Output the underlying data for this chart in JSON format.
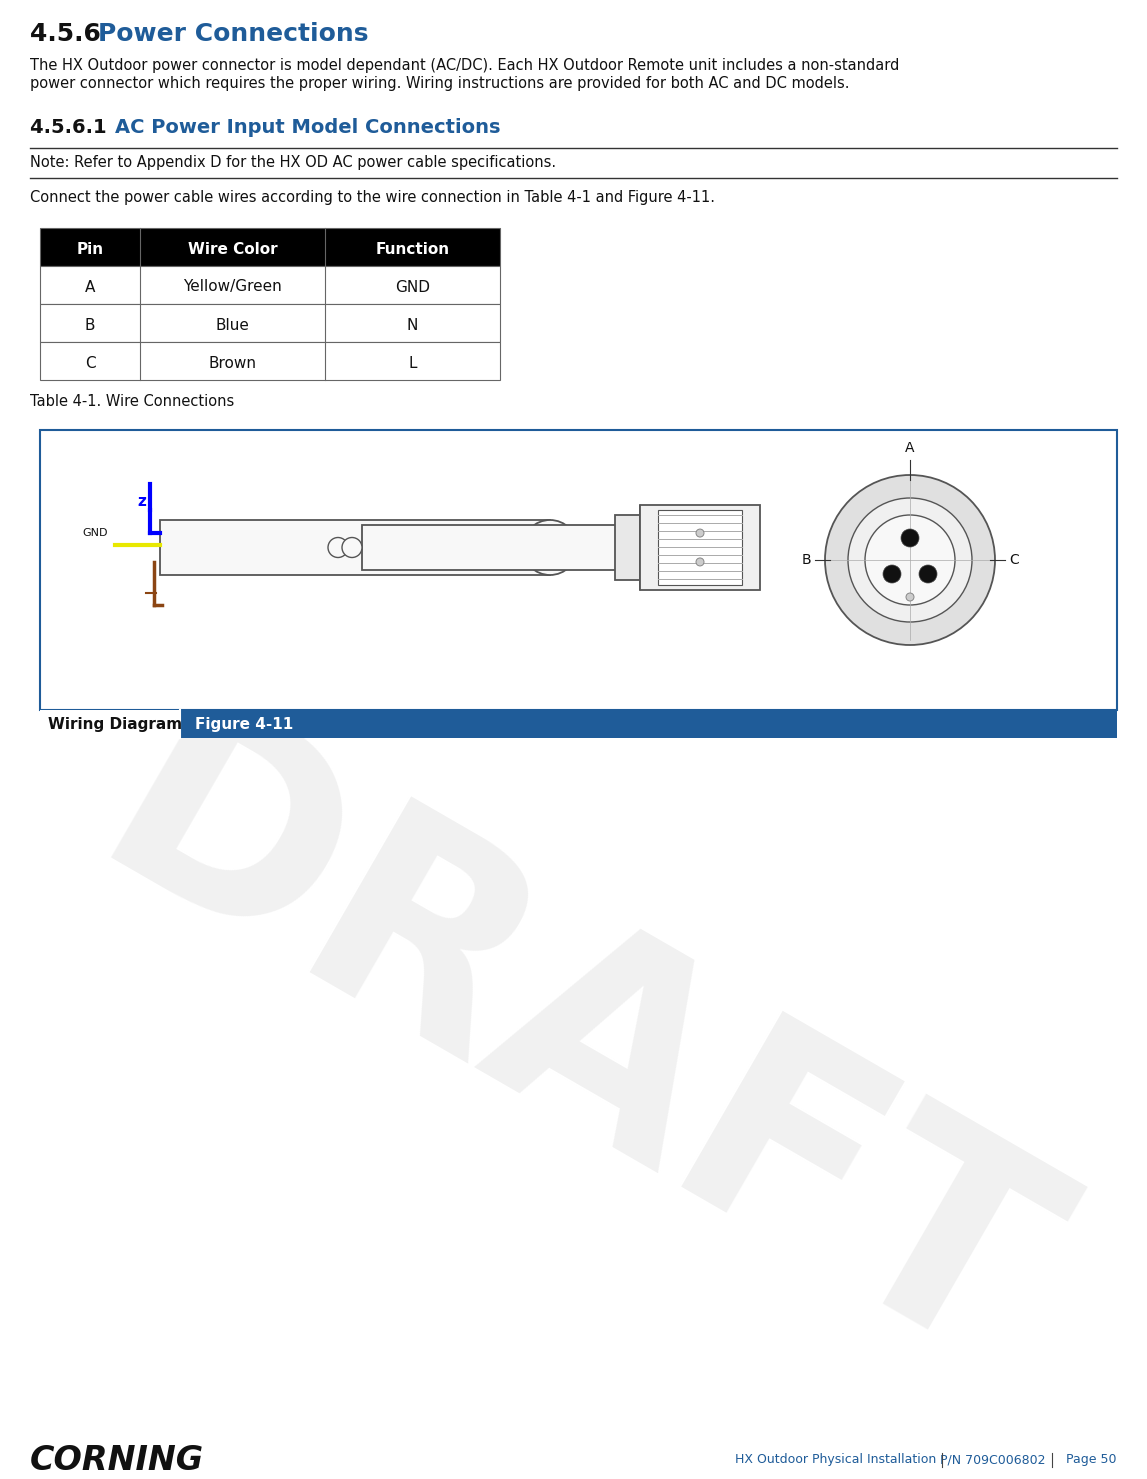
{
  "title_section": "4.5.6",
  "title_text": "Power Connections",
  "title_color": "#1F5C99",
  "body_text_1_line1": "The HX Outdoor power connector is model dependant (AC/DC). Each HX Outdoor Remote unit includes a non-standard",
  "body_text_1_line2": "power connector which requires the proper wiring. Wiring instructions are provided for both AC and DC models.",
  "subsection_num": "4.5.6.1",
  "subsection_title": "AC Power Input Model Connections",
  "note_text": "Note: Refer to Appendix D for the HX OD AC power cable specifications.",
  "connect_text": "Connect the power cable wires according to the wire connection in Table 4-1 and Figure 4-11.",
  "table_headers": [
    "Pin",
    "Wire Color",
    "Function"
  ],
  "table_rows": [
    [
      "A",
      "Yellow/Green",
      "GND"
    ],
    [
      "B",
      "Blue",
      "N"
    ],
    [
      "C",
      "Brown",
      "L"
    ]
  ],
  "table_caption": "Table 4-1. Wire Connections",
  "figure_caption_left": "Wiring Diagram",
  "figure_caption_right": "Figure 4-11",
  "footer_left": "CORNING",
  "header_color": "#000000",
  "header_text_color": "#ffffff",
  "blue_color": "#1F5C99",
  "caption_bar_color": "#1F5C99",
  "bg_color": "#ffffff",
  "draft_watermark": "DRAFT",
  "draft_color": "#c8c8c8",
  "wire_blue": "#0000FF",
  "wire_yellow": "#FFFF00",
  "wire_brown": "#8B4513",
  "connector_gray": "#aaaaaa",
  "diagram_line_color": "#555555"
}
